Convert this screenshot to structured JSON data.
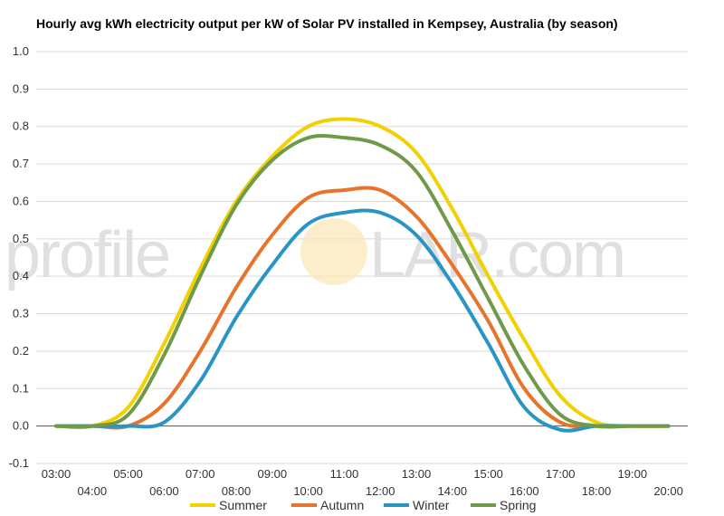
{
  "chart_data": {
    "type": "line",
    "title": "Hourly avg kWh electricity output per kW of Solar PV installed in Kempsey, Australia (by season)",
    "xlabel": "",
    "ylabel": "",
    "x": [
      "03:00",
      "04:00",
      "05:00",
      "06:00",
      "07:00",
      "08:00",
      "09:00",
      "10:00",
      "11:00",
      "12:00",
      "13:00",
      "14:00",
      "15:00",
      "16:00",
      "17:00",
      "18:00",
      "19:00",
      "20:00"
    ],
    "ylim": [
      -0.1,
      1.0
    ],
    "yticks": [
      "-0.1",
      "0.0",
      "0.1",
      "0.2",
      "0.3",
      "0.4",
      "0.5",
      "0.6",
      "0.7",
      "0.8",
      "0.9",
      "1.0"
    ],
    "grid": true,
    "legend": "bottom",
    "series": [
      {
        "name": "Summer",
        "color": "#f2d100",
        "values": [
          0.0,
          0.0,
          0.05,
          0.22,
          0.42,
          0.6,
          0.72,
          0.8,
          0.82,
          0.8,
          0.73,
          0.58,
          0.4,
          0.23,
          0.08,
          0.01,
          0.0,
          0.0
        ]
      },
      {
        "name": "Autumn",
        "color": "#e8732a",
        "values": [
          0.0,
          0.0,
          0.0,
          0.06,
          0.2,
          0.37,
          0.51,
          0.61,
          0.63,
          0.63,
          0.56,
          0.43,
          0.28,
          0.1,
          0.01,
          0.0,
          0.0,
          0.0
        ]
      },
      {
        "name": "Winter",
        "color": "#2a95c5",
        "values": [
          0.0,
          0.0,
          0.0,
          0.01,
          0.12,
          0.29,
          0.43,
          0.54,
          0.57,
          0.57,
          0.51,
          0.38,
          0.22,
          0.05,
          -0.01,
          0.0,
          0.0,
          0.0
        ]
      },
      {
        "name": "Spring",
        "color": "#6f9a49",
        "values": [
          0.0,
          0.0,
          0.03,
          0.19,
          0.4,
          0.59,
          0.71,
          0.77,
          0.77,
          0.75,
          0.68,
          0.52,
          0.34,
          0.16,
          0.03,
          0.0,
          0.0,
          0.0
        ]
      }
    ]
  },
  "watermark": {
    "left": "profile",
    "right": "LAR.com",
    "sun_color": "#fbe7b4"
  }
}
